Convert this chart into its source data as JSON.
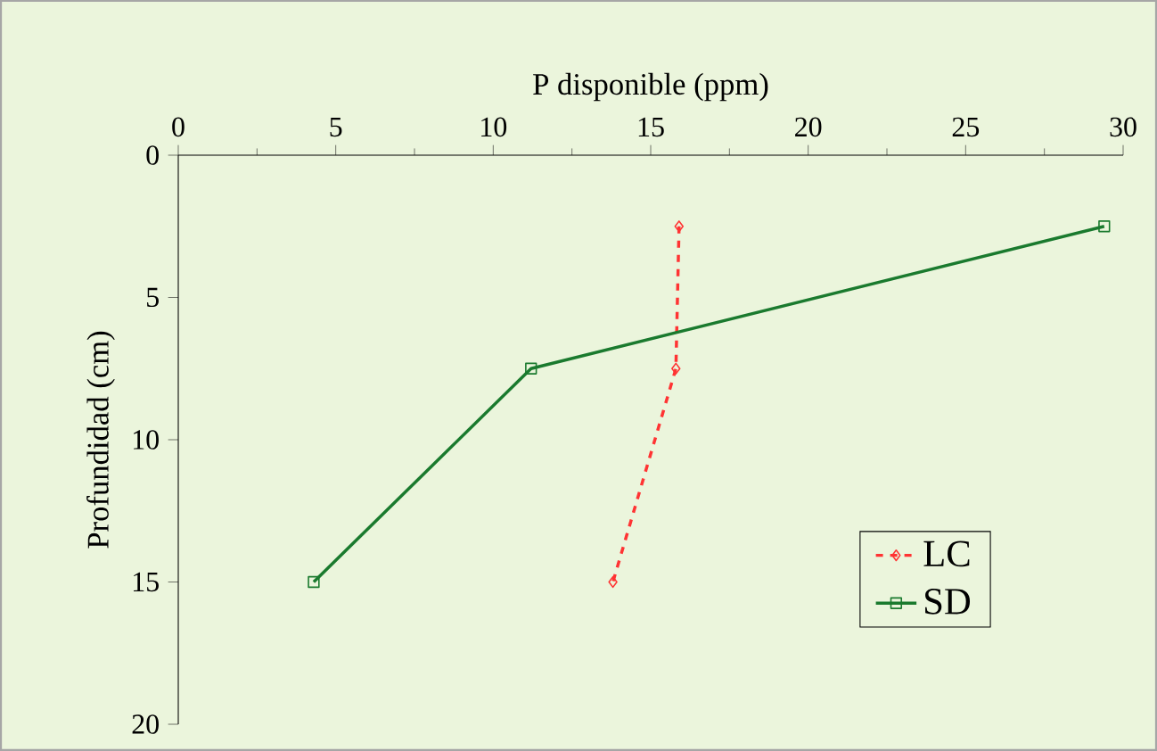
{
  "chart_data": {
    "type": "line",
    "xlabel": "P disponible (ppm)",
    "ylabel": "Profundidad (cm)",
    "xlim": [
      0,
      30
    ],
    "xticks": [
      0,
      5,
      10,
      15,
      20,
      25,
      30
    ],
    "ylim": [
      20,
      0
    ],
    "yticks": [
      0,
      5,
      10,
      15,
      20
    ],
    "grid": false,
    "legend": "bottom right",
    "series": [
      {
        "name": "LC",
        "color": "#ff3333",
        "x": [
          15.9,
          15.8,
          13.8
        ],
        "values": [
          2.5,
          7.5,
          15
        ],
        "marker": "diamond",
        "line_style": "dashed"
      },
      {
        "name": "SD",
        "color": "#1a7a2e",
        "x": [
          29.4,
          11.2,
          4.3
        ],
        "values": [
          2.5,
          7.5,
          15
        ],
        "marker": "square",
        "line_style": "solid"
      }
    ]
  }
}
